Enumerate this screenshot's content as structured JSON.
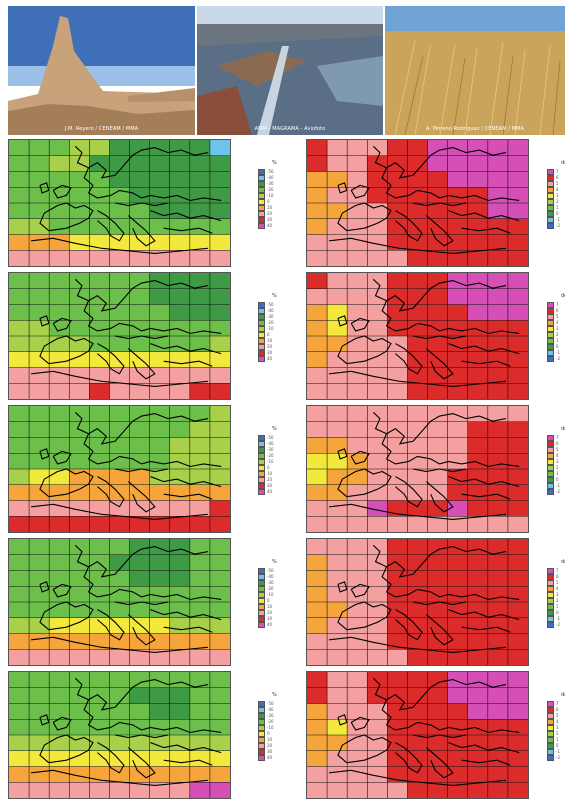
{
  "photos": [
    {
      "name": "badlands",
      "credit": "J.M. Reyero / CENEAM / MMA",
      "sky": "#3f6fb7",
      "ground": "#c7a27a"
    },
    {
      "name": "delta",
      "credit": "AMM - MAGRAMA - Aviofoto",
      "sky": "#c9d9ea",
      "ground": "#6b6f73"
    },
    {
      "name": "wheat",
      "credit": "A. Moreno Rodríguez / CENEAM / MMA",
      "sky": "#6fa3d6",
      "ground": "#c9a45a"
    }
  ],
  "palette": {
    "P": "#d64fb6",
    "R": "#dc2b2b",
    "K": "#f4a0a0",
    "O": "#f5a53c",
    "Y": "#f2e93c",
    "L": "#a8d04a",
    "G": "#6cbf4a",
    "D": "#3f9a45",
    "C": "#6cc4ea",
    "B": "#3a6fc4"
  },
  "legends": {
    "precip": {
      "unit": "%",
      "colors": [
        "#3a6fc4",
        "#6cc4ea",
        "#3f9a45",
        "#6cbf4a",
        "#a8d04a",
        "#f2e93c",
        "#f5a53c",
        "#f4a0a0",
        "#dc2b2b",
        "#d64fb6"
      ],
      "ticks": [
        "-50",
        "-40",
        "-30",
        "-20",
        "-10",
        "0",
        "10",
        "20",
        "30",
        "40"
      ]
    },
    "temp": {
      "unit": "deg",
      "colors": [
        "#d64fb6",
        "#dc2b2b",
        "#f4a0a0",
        "#f5a53c",
        "#f2e93c",
        "#a8d04a",
        "#6cbf4a",
        "#3f9a45",
        "#6cc4ea",
        "#3a6fc4"
      ],
      "ticks": [
        "7",
        "6",
        "5",
        "4",
        "3",
        "2",
        "1",
        "0",
        "-1",
        "-2"
      ]
    }
  },
  "maps": [
    {
      "name": "precip-1",
      "type": "precip",
      "grid": [
        "GGGLLDDDDDC",
        "GGLLDDDDDDD",
        "GGGGGDDDDDD",
        "GGGGGGDDDDD",
        "GGGGGGGDDDD",
        "LLGGGGGGGGG",
        "OOOYYYYYYYY",
        "KKKKKKKKKKK"
      ]
    },
    {
      "name": "temp-1",
      "type": "temp",
      "grid": [
        "RKKKRRPPPPP",
        "RKKRRRPPPPP",
        "OOKRRRRPPPP",
        "OKKRRRRRRPP",
        "OOKKRRRRRPP",
        "OKKKRRRRRRR",
        "KKKKRRRRRRR",
        "KKKKKRRRRRR"
      ]
    },
    {
      "name": "precip-2",
      "type": "precip",
      "grid": [
        "GGGGGGGDDDD",
        "GGGGGGGDDDD",
        "GGGGGGGGDDD",
        "LLGGGGGGGGG",
        "LLLLGGGGGGL",
        "YYYYYYYYYYY",
        "KKKKKKKKKKK",
        "KKKKRKKKKRR"
      ]
    },
    {
      "name": "temp-2",
      "type": "temp",
      "grid": [
        "RKKKRRRPPPP",
        "KKKKRRRPPPP",
        "OYKKRRRRPPP",
        "OYKKRRRRRRR",
        "OOKKKRRRRRR",
        "OKKKKRRRRRR",
        "KKKKKRRRRRR",
        "KKKKKRRRRRR"
      ]
    },
    {
      "name": "precip-3",
      "type": "precip",
      "grid": [
        "GGGGGGGGGGL",
        "GGGGGGGGGLL",
        "GGGGGGGGLLL",
        "GGGGGGGGLLL",
        "LYYOOOOLLLL",
        "OOOOOOOOOOO",
        "KKKKKKKKKKR",
        "RRRRRRRRRRR"
      ]
    },
    {
      "name": "temp-3",
      "type": "temp",
      "grid": [
        "KKKKKKKKKKK",
        "KKKKKKKKRRR",
        "OOKKKKKKRRR",
        "YYOKKKKKRRR",
        "YOOKKKKRRRR",
        "OOKKKKKRRRR",
        "KKKPRRRPRRR",
        "KKKKKKKKKKK"
      ]
    },
    {
      "name": "precip-4",
      "type": "precip",
      "grid": [
        "GGGGGGDDDGG",
        "GGGGGDDDDGG",
        "GGGGGGDDDGG",
        "GGGGGGGGGGG",
        "GGGGGGGGGGG",
        "LLYYYYYYLLL",
        "OOOOOOOOOOO",
        "KKKKKKKKKKK"
      ]
    },
    {
      "name": "temp-4",
      "type": "temp",
      "grid": [
        "KKKKRRRRRRR",
        "OKKKRRRRRRR",
        "OKKKRRRRRRR",
        "OKKKRRRRRRR",
        "OOKKRRRRRRR",
        "OKKKRRRRRRR",
        "KKKKRRRRRRR",
        "KKKKKRRRRRR"
      ]
    },
    {
      "name": "precip-5",
      "type": "precip",
      "grid": [
        "GGGGGGGGGGG",
        "GGGGGGDDDGG",
        "GGGGGGGDDGG",
        "GGGGGGGGGGG",
        "LLLLLLLLLLL",
        "YYYYYYYYYYY",
        "OOOOOOOOOOO",
        "KKKKKKKKKPP"
      ]
    },
    {
      "name": "temp-5",
      "type": "temp",
      "grid": [
        "RKKRRRRPPPP",
        "RKKRRRRPPPP",
        "OKKKRRRRPPP",
        "OYKKRRRRRRR",
        "OOKKRRRRRRR",
        "OKKKRRRRRRR",
        "KKKKRRRRRRR",
        "KKKKKRRRRRR"
      ]
    }
  ]
}
